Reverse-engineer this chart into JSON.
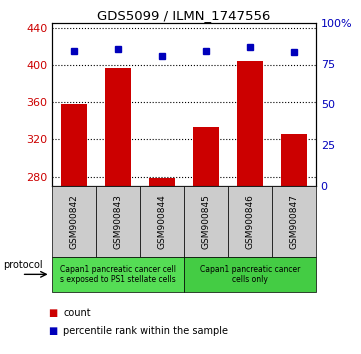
{
  "title": "GDS5099 / ILMN_1747556",
  "samples": [
    "GSM900842",
    "GSM900843",
    "GSM900844",
    "GSM900845",
    "GSM900846",
    "GSM900847"
  ],
  "counts": [
    358,
    397,
    278,
    333,
    404,
    326
  ],
  "percentiles": [
    83,
    84,
    80,
    83,
    85,
    82
  ],
  "ylim_left": [
    270,
    445
  ],
  "ylim_right": [
    0,
    100
  ],
  "yticks_left": [
    280,
    320,
    360,
    400,
    440
  ],
  "yticks_right": [
    0,
    25,
    50,
    75,
    100
  ],
  "bar_color": "#cc0000",
  "dot_color": "#0000bb",
  "protocol_groups": [
    {
      "label": "Capan1 pancreatic cancer cell\ns exposed to PS1 stellate cells",
      "color": "#55dd55",
      "span": [
        0,
        3
      ]
    },
    {
      "label": "Capan1 pancreatic cancer\ncells only",
      "color": "#44cc44",
      "span": [
        3,
        6
      ]
    }
  ],
  "protocol_label": "protocol",
  "legend_items": [
    {
      "color": "#cc0000",
      "label": "count"
    },
    {
      "color": "#0000bb",
      "label": "percentile rank within the sample"
    }
  ],
  "background_color": "#ffffff",
  "tick_label_color_left": "#cc0000",
  "tick_label_color_right": "#0000bb",
  "sample_box_color": "#cccccc",
  "bar_bottom": 270
}
